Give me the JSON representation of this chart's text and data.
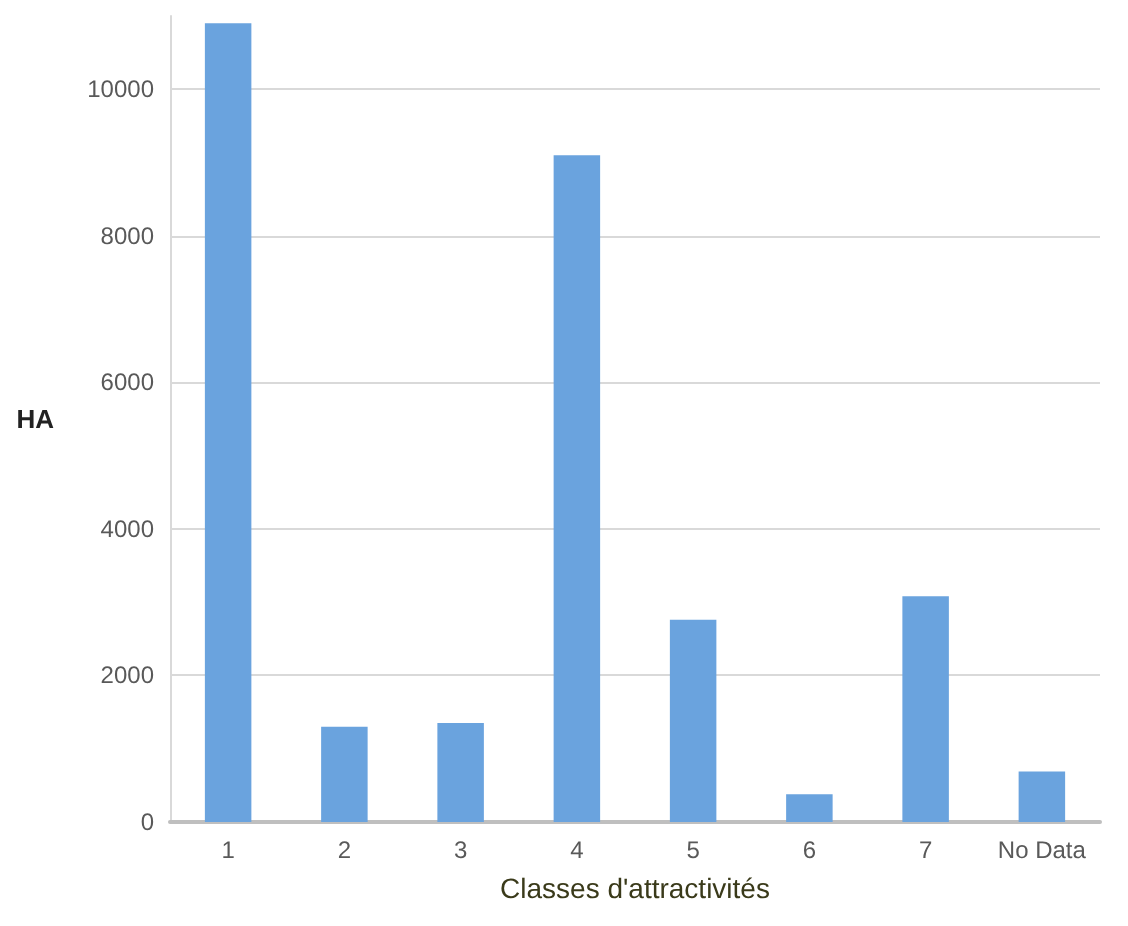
{
  "chart_data": {
    "type": "bar",
    "xlabel": "Classes d'attractivités",
    "ylabel": "HA",
    "categories": [
      "1",
      "2",
      "3",
      "4",
      "5",
      "6",
      "7",
      "No Data"
    ],
    "values": [
      10900,
      1300,
      1350,
      9100,
      2760,
      380,
      3080,
      690
    ],
    "color": "#6aa3de",
    "ylim": [
      0,
      11000
    ],
    "yticks": [
      0,
      2000,
      4000,
      6000,
      8000,
      10000
    ],
    "grid": "y"
  }
}
